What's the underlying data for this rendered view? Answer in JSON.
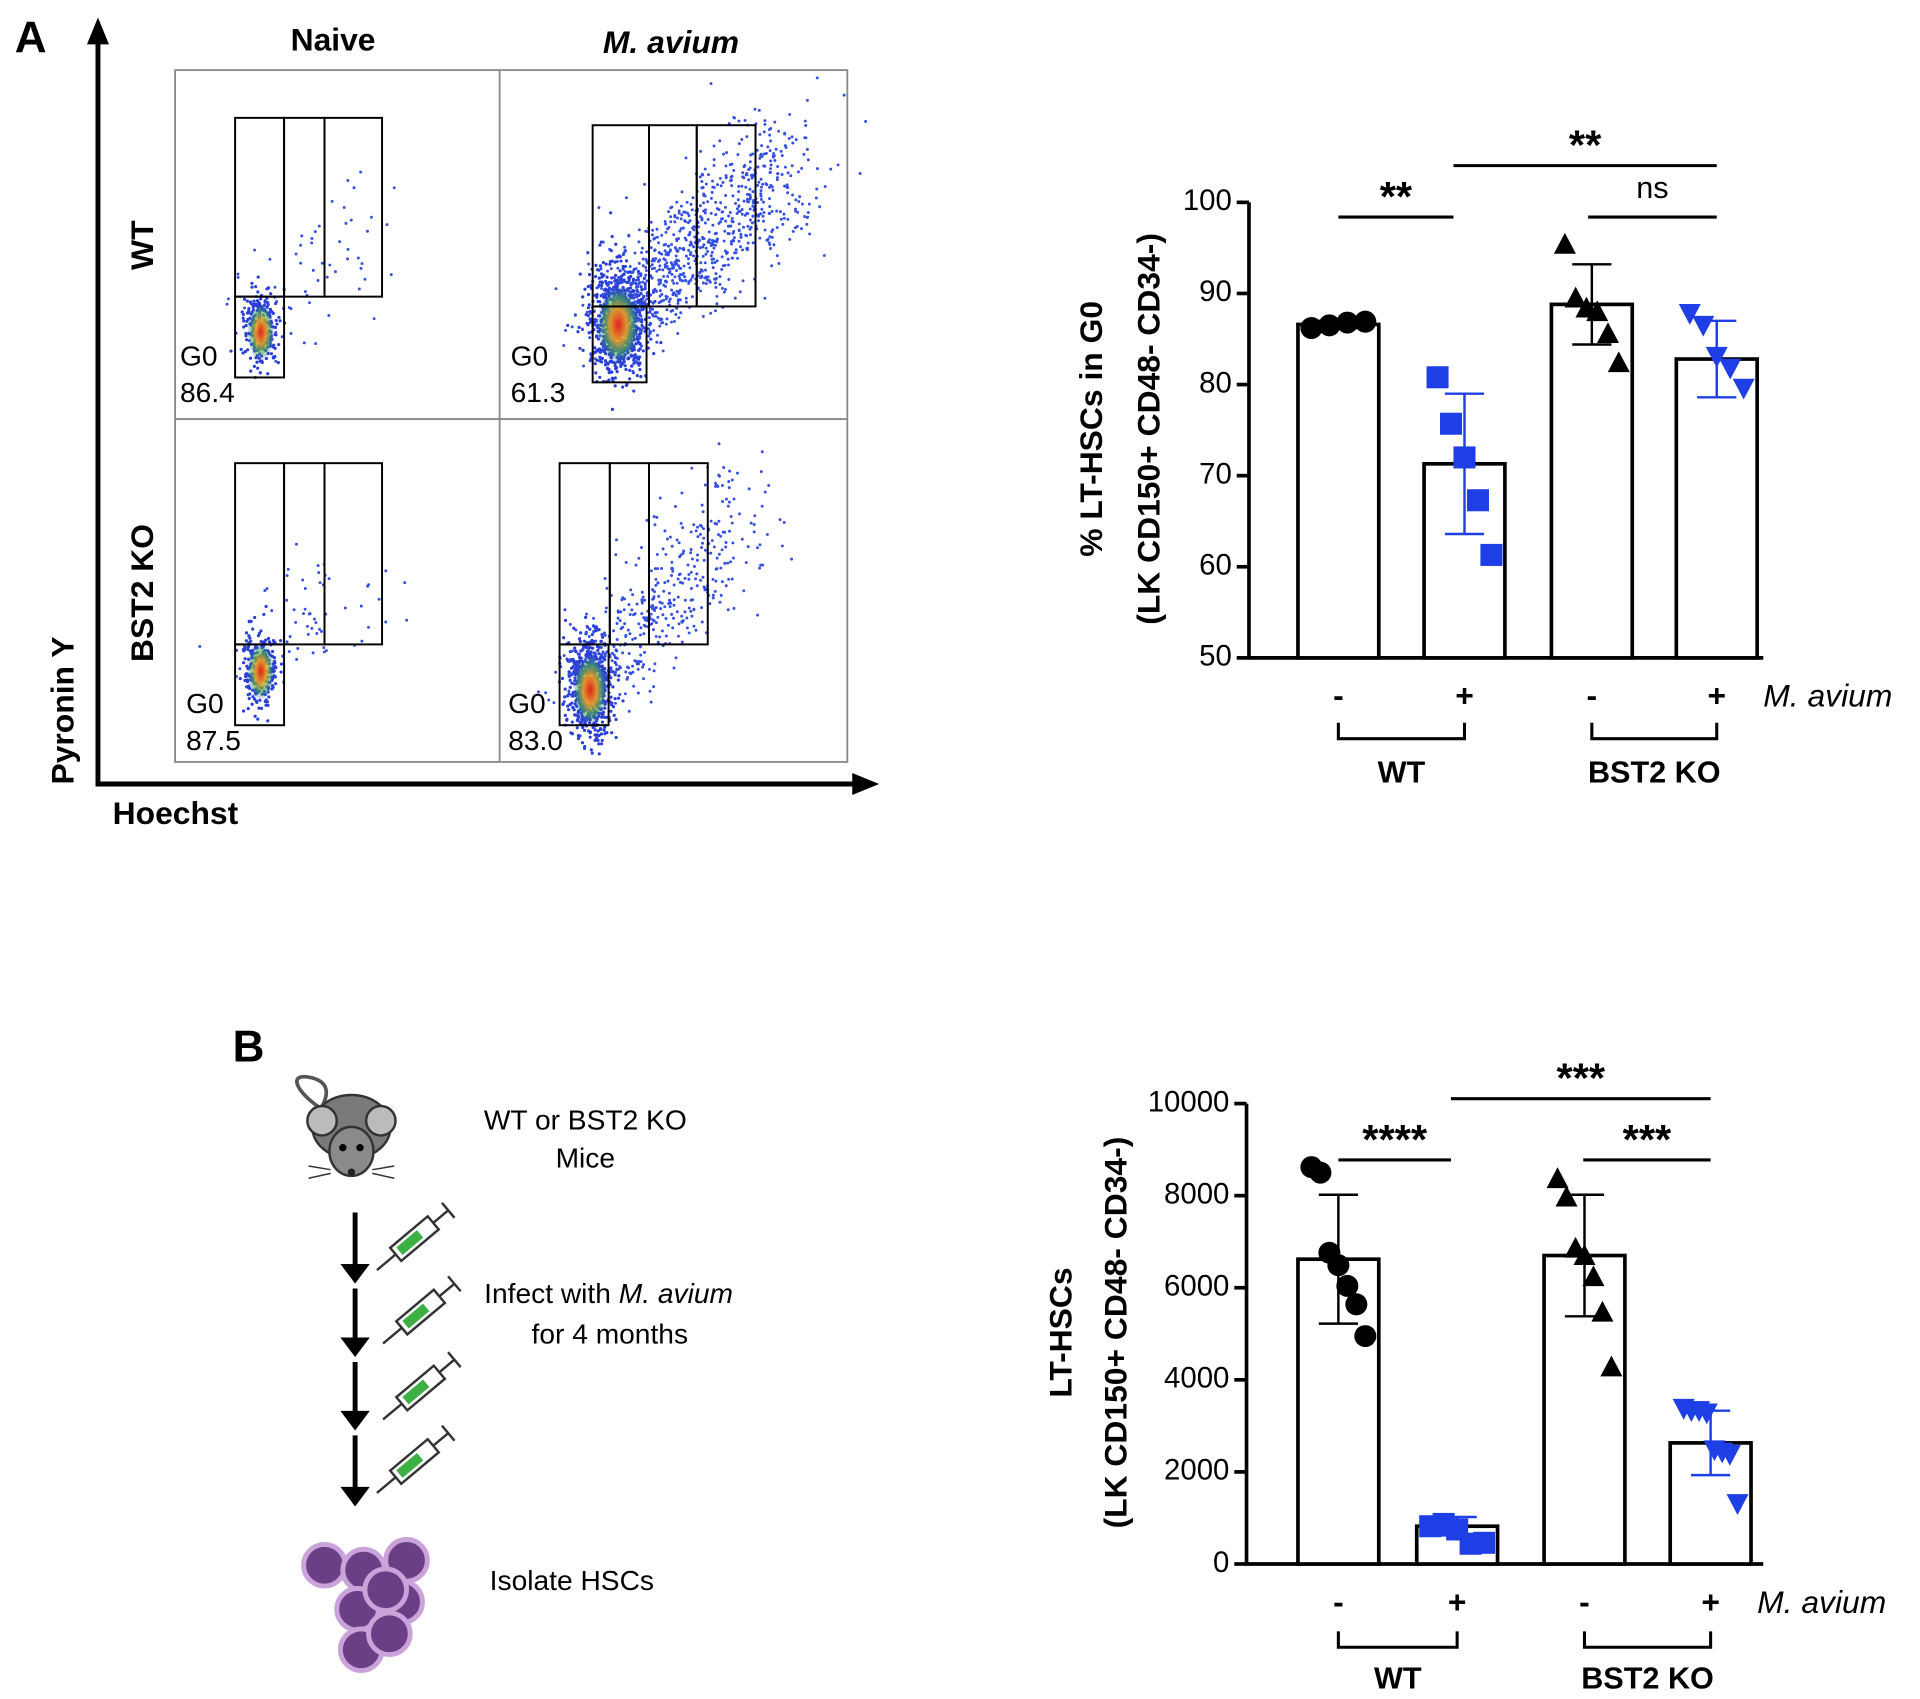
{
  "panel_a": {
    "label": "A",
    "columns": [
      "Naive",
      "M. avium"
    ],
    "rows": [
      "WT",
      "BST2 KO"
    ],
    "y_axis": "Pyronin Y",
    "x_axis": "Hoechst",
    "plots": [
      {
        "gate": "G0",
        "value": "86.4"
      },
      {
        "gate": "G0",
        "value": "61.3"
      },
      {
        "gate": "G0",
        "value": "87.5"
      },
      {
        "gate": "G0",
        "value": "83.0"
      }
    ]
  },
  "chart_data": [
    {
      "type": "bar",
      "ylabel": [
        "% LT-HSCs in G0",
        "(LK CD150+ CD48- CD34-)"
      ],
      "categories": [
        "-",
        "+",
        "-",
        "+"
      ],
      "groups": [
        "WT",
        "BST2 KO"
      ],
      "condition": "M. avium",
      "values": [
        86.6,
        71.3,
        88.8,
        82.8
      ],
      "errors": [
        0.4,
        7.7,
        4.4,
        4.2
      ],
      "points": [
        [
          86.2,
          86.5,
          86.8,
          86.9
        ],
        [
          80.8,
          75.7,
          72.0,
          67.3,
          61.3
        ],
        [
          95.3,
          89.4,
          88.3,
          87.9,
          85.5,
          82.3
        ],
        [
          87.9,
          86.6,
          83.2,
          81.9,
          79.7
        ]
      ],
      "point_colors": [
        "#000000",
        "#1f3fe6",
        "#000000",
        "#1f3fe6"
      ],
      "markers": [
        "circle",
        "square",
        "triangle",
        "triangle-down"
      ],
      "bar_color": "#ffffff",
      "significance": [
        "**",
        "ns",
        "**"
      ],
      "ylim": [
        50,
        100
      ],
      "yticks": [
        50,
        60,
        70,
        80,
        90,
        100
      ]
    },
    {
      "type": "bar",
      "ylabel": [
        "LT-HSCs",
        "(LK CD150+ CD48- CD34-)"
      ],
      "categories": [
        "-",
        "+",
        "-",
        "+"
      ],
      "groups": [
        "WT",
        "BST2 KO"
      ],
      "condition": "M. avium",
      "values": [
        6620,
        820,
        6700,
        2630
      ],
      "errors": [
        1400,
        200,
        1320,
        700
      ],
      "points": [
        [
          8620,
          8500,
          6760,
          6490,
          6040,
          5640,
          4950
        ],
        [
          820,
          870,
          750,
          440,
          460
        ],
        [
          8350,
          7950,
          6840,
          6680,
          6220,
          5450,
          4260
        ],
        [
          3400,
          3350,
          3350,
          3300,
          2500,
          2450,
          2400,
          1330
        ]
      ],
      "point_colors": [
        "#000000",
        "#1f3fe6",
        "#000000",
        "#1f3fe6"
      ],
      "markers": [
        "circle",
        "square",
        "triangle",
        "triangle-down"
      ],
      "bar_color": "#ffffff",
      "significance": [
        "****",
        "***",
        "***"
      ],
      "ylim": [
        0,
        10000
      ],
      "yticks": [
        0,
        2000,
        4000,
        6000,
        8000,
        10000
      ]
    }
  ],
  "panel_b": {
    "label": "B",
    "mice": [
      "WT or BST2 KO",
      "Mice"
    ],
    "infect": [
      "Infect with ",
      "M. avium",
      "for 4 months"
    ],
    "isolate": "Isolate HSCs"
  }
}
